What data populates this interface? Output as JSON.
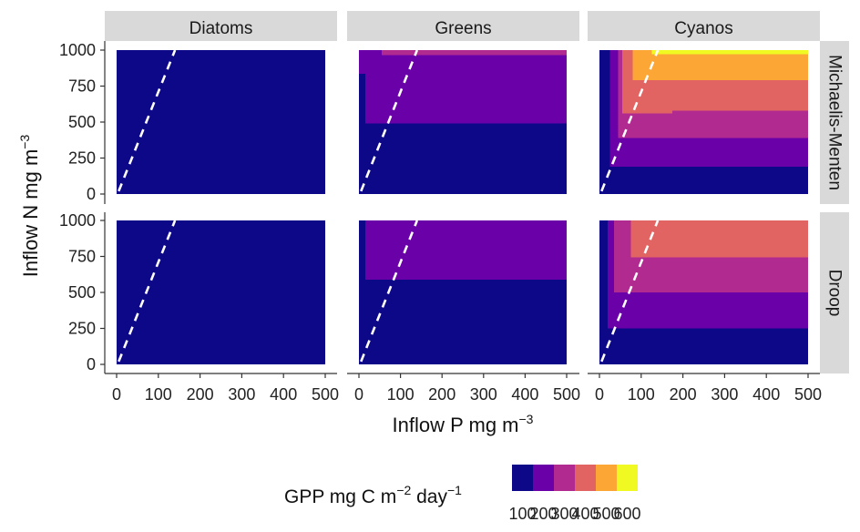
{
  "chart_data": {
    "type": "heatmap",
    "title": "",
    "xlabel": "Inflow P mg m",
    "xlabel_superscript": "−3",
    "ylabel": "Inflow N mg m",
    "ylabel_superscript": "−3",
    "columns": [
      "Diatoms",
      "Greens",
      "Cyanos"
    ],
    "rows": [
      "Michaelis-Menten",
      "Droop"
    ],
    "xlim": [
      0,
      500
    ],
    "ylim": [
      0,
      1000
    ],
    "x_ticks": [
      "0",
      "100",
      "200",
      "300",
      "400",
      "500"
    ],
    "y_ticks": [
      "0",
      "250",
      "500",
      "750",
      "1000"
    ],
    "reference_line": {
      "style": "dashed",
      "color": "#ffffff",
      "from": [
        5,
        20
      ],
      "to": [
        140,
        1000
      ]
    },
    "legend": {
      "title": "GPP mg C m",
      "title_superscript": "−2",
      "title_suffix": " day",
      "title_suffix_superscript": "−1",
      "position": "bottom",
      "levels": [
        {
          "label": "100",
          "color": "#0d0887"
        },
        {
          "label": "200",
          "color": "#6a00a8"
        },
        {
          "label": "300",
          "color": "#b12a90"
        },
        {
          "label": "400",
          "color": "#e16462"
        },
        {
          "label": "500",
          "color": "#fca636"
        },
        {
          "label": "600",
          "color": "#f0f921"
        }
      ]
    },
    "panels": [
      {
        "row": "Michaelis-Menten",
        "column": "Diatoms",
        "regions": [
          {
            "x": [
              0,
              500
            ],
            "y": [
              0,
              1000
            ],
            "level": 1
          }
        ]
      },
      {
        "row": "Michaelis-Menten",
        "column": "Greens",
        "regions": [
          {
            "x": [
              0,
              500
            ],
            "y": [
              0,
              1000
            ],
            "level": 1
          },
          {
            "x": [
              15,
              500
            ],
            "y": [
              490,
              1000
            ],
            "level": 2
          },
          {
            "x": [
              0,
              15
            ],
            "y": [
              835,
              1000
            ],
            "level": 2
          },
          {
            "x": [
              55,
              500
            ],
            "y": [
              965,
              1000
            ],
            "level": 3
          }
        ]
      },
      {
        "row": "Michaelis-Menten",
        "column": "Cyanos",
        "regions": [
          {
            "x": [
              0,
              500
            ],
            "y": [
              0,
              1000
            ],
            "level": 1
          },
          {
            "x": [
              25,
              500
            ],
            "y": [
              190,
              1000
            ],
            "level": 2
          },
          {
            "x": [
              45,
              500
            ],
            "y": [
              390,
              1000
            ],
            "level": 3
          },
          {
            "x": [
              55,
              500
            ],
            "y": [
              580,
              1000
            ],
            "level": 4
          },
          {
            "x": [
              55,
              175
            ],
            "y": [
              560,
              580
            ],
            "level": 4
          },
          {
            "x": [
              80,
              500
            ],
            "y": [
              790,
              1000
            ],
            "level": 5
          },
          {
            "x": [
              125,
              500
            ],
            "y": [
              970,
              1000
            ],
            "level": 6
          }
        ]
      },
      {
        "row": "Droop",
        "column": "Diatoms",
        "regions": [
          {
            "x": [
              0,
              500
            ],
            "y": [
              0,
              1000
            ],
            "level": 1
          }
        ]
      },
      {
        "row": "Droop",
        "column": "Greens",
        "regions": [
          {
            "x": [
              0,
              500
            ],
            "y": [
              0,
              1000
            ],
            "level": 1
          },
          {
            "x": [
              15,
              500
            ],
            "y": [
              590,
              1000
            ],
            "level": 2
          }
        ]
      },
      {
        "row": "Droop",
        "column": "Cyanos",
        "regions": [
          {
            "x": [
              0,
              500
            ],
            "y": [
              0,
              1000
            ],
            "level": 1
          },
          {
            "x": [
              20,
              500
            ],
            "y": [
              250,
              1000
            ],
            "level": 2
          },
          {
            "x": [
              35,
              500
            ],
            "y": [
              500,
              1000
            ],
            "level": 3
          },
          {
            "x": [
              75,
              500
            ],
            "y": [
              745,
              1000
            ],
            "level": 4
          }
        ]
      }
    ]
  }
}
